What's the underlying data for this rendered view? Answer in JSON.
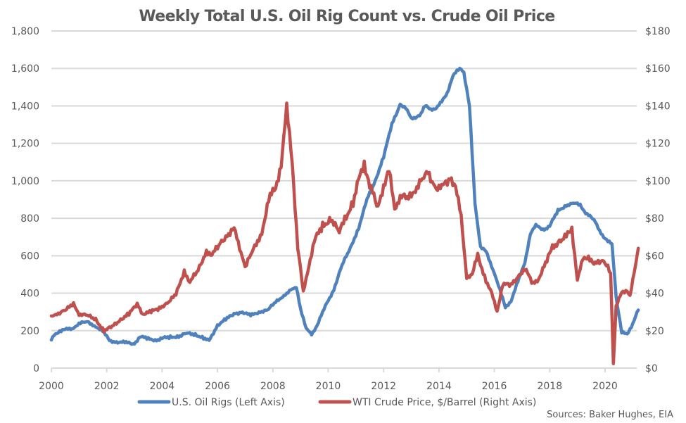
{
  "chart_data": {
    "type": "line",
    "title": "Weekly Total U.S. Oil Rig Count vs. Crude Oil Price",
    "xlabel": "",
    "ylabel_left": "",
    "ylabel_right": "",
    "source": "Sources: Baker Hughes, EIA",
    "xlim": [
      2000,
      2021.3
    ],
    "ylim_left": [
      0,
      1800
    ],
    "ylim_right": [
      0,
      180
    ],
    "grid": true,
    "legend_position": "bottom",
    "x_ticks": [
      "2000",
      "2002",
      "2004",
      "2006",
      "2008",
      "2010",
      "2012",
      "2014",
      "2016",
      "2018",
      "2020"
    ],
    "y_left_ticks": [
      "0",
      "200",
      "400",
      "600",
      "800",
      "1,000",
      "1,200",
      "1,400",
      "1,600",
      "1,800"
    ],
    "y_right_ticks": [
      "$0",
      "$20",
      "$40",
      "$60",
      "$80",
      "$100",
      "$120",
      "$140",
      "$160",
      "$180"
    ],
    "series": [
      {
        "name": "U.S. Oil Rigs (Left Axis)",
        "axis": "left",
        "color": "#4f81bd",
        "x": [
          2000.0,
          2000.1,
          2000.3,
          2000.5,
          2000.8,
          2001.0,
          2001.3,
          2001.6,
          2001.9,
          2002.1,
          2002.4,
          2002.7,
          2003.0,
          2003.2,
          2003.5,
          2003.8,
          2004.0,
          2004.3,
          2004.6,
          2004.9,
          2005.2,
          2005.5,
          2005.7,
          2006.0,
          2006.3,
          2006.6,
          2006.9,
          2007.2,
          2007.5,
          2007.8,
          2008.1,
          2008.4,
          2008.7,
          2008.85,
          2009.0,
          2009.2,
          2009.4,
          2009.6,
          2009.9,
          2010.2,
          2010.5,
          2010.8,
          2011.1,
          2011.4,
          2011.7,
          2012.0,
          2012.3,
          2012.6,
          2012.8,
          2013.0,
          2013.3,
          2013.5,
          2013.7,
          2013.9,
          2014.1,
          2014.3,
          2014.5,
          2014.75,
          2014.9,
          2015.1,
          2015.3,
          2015.5,
          2015.7,
          2016.0,
          2016.2,
          2016.4,
          2016.6,
          2016.9,
          2017.1,
          2017.3,
          2017.5,
          2017.8,
          2018.0,
          2018.3,
          2018.6,
          2018.9,
          2019.1,
          2019.3,
          2019.6,
          2019.9,
          2020.1,
          2020.25,
          2020.4,
          2020.6,
          2020.8,
          2021.0,
          2021.2
        ],
        "values": [
          150,
          175,
          200,
          205,
          215,
          240,
          245,
          225,
          190,
          145,
          140,
          135,
          130,
          170,
          155,
          150,
          160,
          165,
          170,
          185,
          180,
          160,
          145,
          230,
          260,
          290,
          300,
          280,
          300,
          310,
          350,
          390,
          420,
          430,
          320,
          210,
          180,
          230,
          330,
          420,
          550,
          640,
          750,
          900,
          1000,
          1130,
          1300,
          1410,
          1390,
          1330,
          1350,
          1400,
          1380,
          1390,
          1420,
          1470,
          1560,
          1600,
          1580,
          1400,
          880,
          650,
          620,
          510,
          420,
          320,
          360,
          480,
          560,
          720,
          760,
          740,
          760,
          840,
          870,
          880,
          870,
          830,
          790,
          710,
          680,
          660,
          380,
          190,
          180,
          240,
          310
        ]
      },
      {
        "name": "WTI Crude Price, $/Barrel (Right Axis)",
        "axis": "right",
        "color": "#c0504d",
        "x": [
          2000.0,
          2000.2,
          2000.5,
          2000.8,
          2001.0,
          2001.3,
          2001.6,
          2001.9,
          2002.2,
          2002.5,
          2002.8,
          2003.1,
          2003.3,
          2003.6,
          2003.9,
          2004.2,
          2004.5,
          2004.8,
          2005.0,
          2005.3,
          2005.6,
          2005.8,
          2006.1,
          2006.4,
          2006.6,
          2006.9,
          2007.0,
          2007.3,
          2007.6,
          2007.9,
          2008.1,
          2008.3,
          2008.5,
          2008.7,
          2008.9,
          2009.1,
          2009.3,
          2009.5,
          2009.8,
          2010.1,
          2010.4,
          2010.6,
          2010.9,
          2011.1,
          2011.3,
          2011.5,
          2011.8,
          2012.0,
          2012.2,
          2012.4,
          2012.6,
          2012.9,
          2013.1,
          2013.4,
          2013.6,
          2013.9,
          2014.1,
          2014.4,
          2014.6,
          2014.8,
          2015.0,
          2015.2,
          2015.4,
          2015.7,
          2015.9,
          2016.1,
          2016.3,
          2016.6,
          2016.9,
          2017.1,
          2017.4,
          2017.6,
          2017.9,
          2018.1,
          2018.4,
          2018.6,
          2018.8,
          2019.0,
          2019.2,
          2019.4,
          2019.6,
          2019.9,
          2020.1,
          2020.2,
          2020.3,
          2020.4,
          2020.6,
          2020.8,
          2020.9,
          2021.1,
          2021.2
        ],
        "values": [
          27,
          29,
          31,
          34,
          29,
          28,
          26,
          20,
          22,
          26,
          29,
          34,
          29,
          30,
          32,
          35,
          39,
          52,
          46,
          52,
          63,
          60,
          67,
          72,
          74,
          60,
          54,
          63,
          73,
          92,
          95,
          110,
          138,
          110,
          65,
          40,
          55,
          68,
          76,
          80,
          72,
          80,
          88,
          100,
          110,
          97,
          86,
          98,
          105,
          85,
          92,
          90,
          95,
          100,
          104,
          97,
          96,
          102,
          98,
          80,
          49,
          50,
          60,
          47,
          40,
          30,
          45,
          44,
          50,
          53,
          45,
          48,
          57,
          65,
          68,
          70,
          75,
          47,
          58,
          60,
          55,
          58,
          55,
          50,
          3,
          33,
          40,
          42,
          38,
          55,
          64
        ]
      }
    ]
  }
}
